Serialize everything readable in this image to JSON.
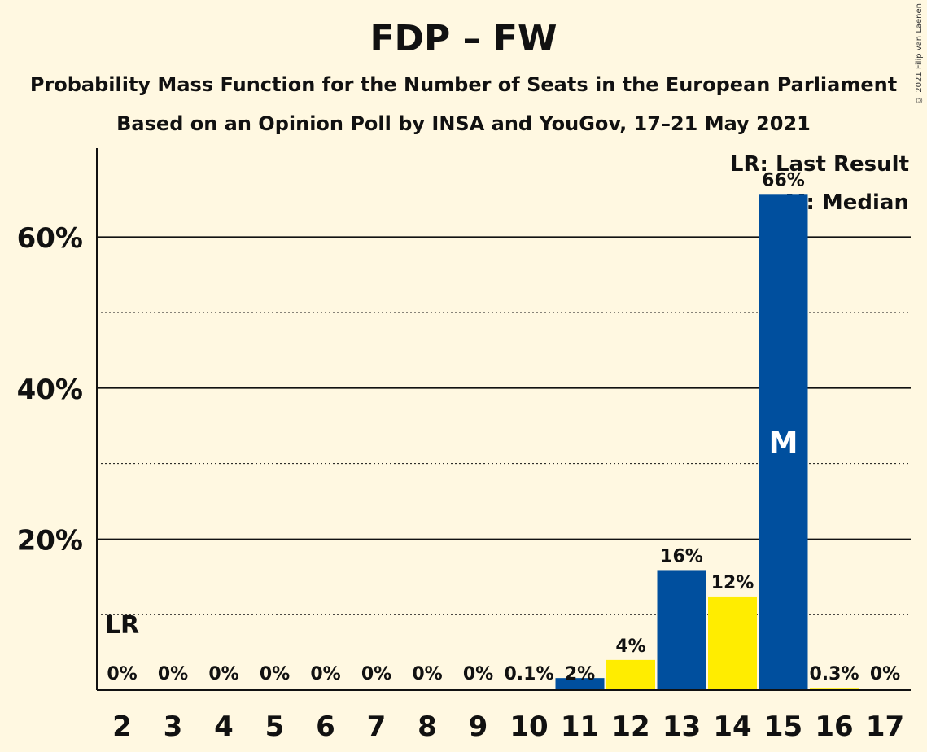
{
  "title": "FDP – FW",
  "subtitle1": "Probability Mass Function for the Number of Seats in the European Parliament",
  "subtitle2": "Based on an Opinion Poll by INSA and YouGov, 17–21 May 2021",
  "copyright": "© 2021 Filip van Laenen",
  "legend": {
    "last_result": "LR: Last Result",
    "median": "M: Median"
  },
  "markers": {
    "last_result_label": "LR",
    "last_result_seat": "2",
    "median_label": "M",
    "median_seat": "15"
  },
  "colors": {
    "blue": "#004F9E",
    "yellow": "#FFED00",
    "background": "#FFF8E1"
  },
  "chart_data": {
    "type": "bar",
    "categories": [
      "2",
      "3",
      "4",
      "5",
      "6",
      "7",
      "8",
      "9",
      "10",
      "11",
      "12",
      "13",
      "14",
      "15",
      "16",
      "17"
    ],
    "values": [
      0,
      0,
      0,
      0,
      0,
      0,
      0,
      0,
      0.1,
      1.6,
      4.0,
      15.9,
      12.4,
      65.7,
      0.3,
      0
    ],
    "value_labels": [
      "0%",
      "0%",
      "0%",
      "0%",
      "0%",
      "0%",
      "0%",
      "0%",
      "0.1%",
      "2%",
      "4%",
      "16%",
      "12%",
      "66%",
      "0.3%",
      "0%"
    ],
    "bar_colors": [
      "blue",
      "yellow",
      "blue",
      "yellow",
      "blue",
      "yellow",
      "blue",
      "yellow",
      "blue",
      "blue",
      "yellow",
      "blue",
      "yellow",
      "blue",
      "yellow",
      "blue"
    ],
    "ylim": [
      0,
      70
    ],
    "yticks_major": [
      20,
      40,
      60
    ],
    "ytick_labels": [
      "20%",
      "40%",
      "60%"
    ],
    "yticks_minor": [
      10,
      30,
      50
    ],
    "grid": true,
    "legend_position": "top-right"
  }
}
